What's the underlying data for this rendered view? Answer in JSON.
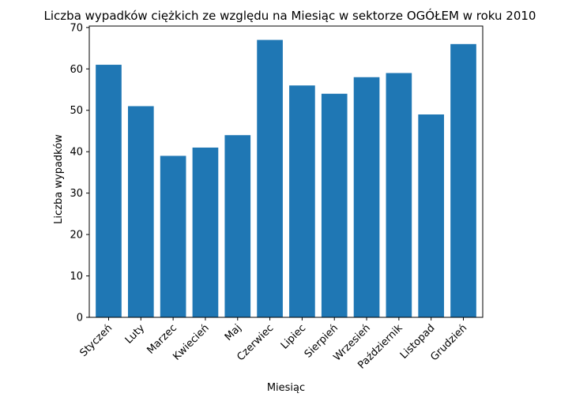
{
  "chart_data": {
    "type": "bar",
    "title": "Liczba wypadków ciężkich ze względu na Miesiąc w sektorze OGÓŁEM   w roku 2010",
    "xlabel": "Miesiąc",
    "ylabel": "Liczba wypadków",
    "categories": [
      "Styczeń",
      "Luty",
      "Marzec",
      "Kwiecień",
      "Maj",
      "Czerwiec",
      "Lipiec",
      "Sierpień",
      "Wrzesień",
      "Październik",
      "Listopad",
      "Grudzień"
    ],
    "values": [
      61,
      51,
      39,
      41,
      44,
      67,
      56,
      54,
      58,
      59,
      49,
      66
    ],
    "ylim": [
      0,
      70.35
    ],
    "yticks": [
      0,
      10,
      20,
      30,
      40,
      50,
      60,
      70
    ],
    "bar_color": "#1f77b4",
    "grid": false,
    "legend": "none"
  }
}
